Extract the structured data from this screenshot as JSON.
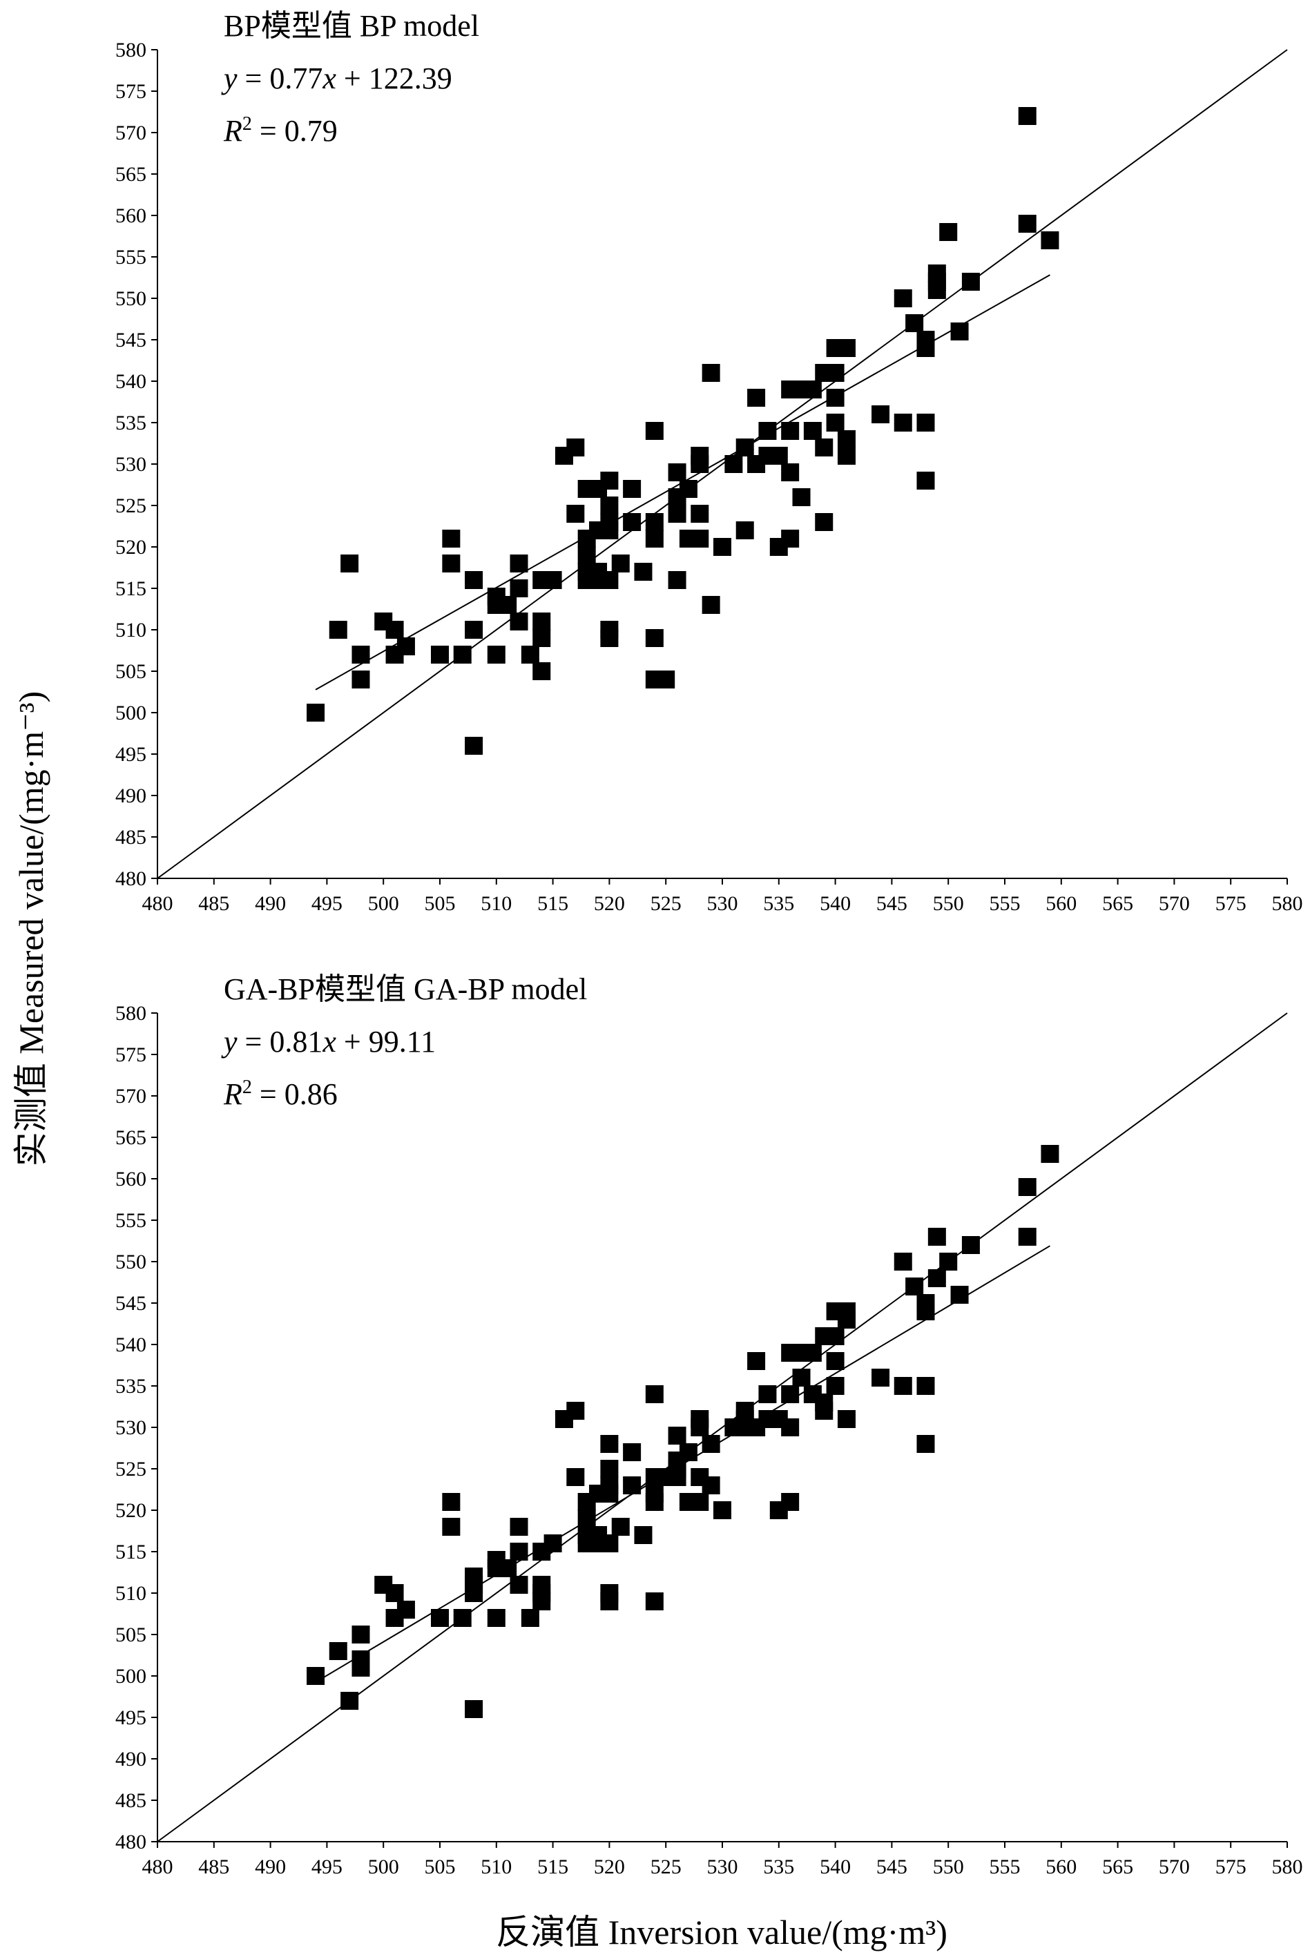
{
  "xlabel": "反演值  Inversion value/(mg·m³)",
  "ylabel": "实测值  Measured value/(mg·m⁻³)",
  "chart_data": [
    {
      "type": "scatter",
      "title": "BP模型值 BP model",
      "equation": {
        "lhs": "y",
        "eq": " = 0.77",
        "var": "x",
        "rest": " + 122.39"
      },
      "r2": {
        "r": "R",
        "sup": "2",
        "val": " = 0.79"
      },
      "xlim": [
        480,
        580
      ],
      "ylim": [
        480,
        580
      ],
      "tick_step": 5,
      "fit": {
        "slope": 0.77,
        "intercept": 122.39,
        "x_range": [
          494,
          559
        ]
      },
      "identity_line": true,
      "points": [
        [
          494,
          500
        ],
        [
          496,
          510
        ],
        [
          497,
          518
        ],
        [
          498,
          507
        ],
        [
          498,
          504
        ],
        [
          500,
          511
        ],
        [
          501,
          510
        ],
        [
          501,
          507
        ],
        [
          502,
          508
        ],
        [
          505,
          507
        ],
        [
          506,
          521
        ],
        [
          506,
          518
        ],
        [
          507,
          507
        ],
        [
          508,
          516
        ],
        [
          508,
          510
        ],
        [
          508,
          496
        ],
        [
          510,
          514
        ],
        [
          510,
          513
        ],
        [
          510,
          507
        ],
        [
          511,
          513
        ],
        [
          512,
          518
        ],
        [
          512,
          515
        ],
        [
          512,
          511
        ],
        [
          513,
          507
        ],
        [
          514,
          516
        ],
        [
          514,
          511
        ],
        [
          514,
          509
        ],
        [
          514,
          505
        ],
        [
          515,
          516
        ],
        [
          516,
          531
        ],
        [
          517,
          532
        ],
        [
          517,
          524
        ],
        [
          518,
          527
        ],
        [
          518,
          521
        ],
        [
          518,
          519
        ],
        [
          518,
          517
        ],
        [
          518,
          516
        ],
        [
          519,
          527
        ],
        [
          519,
          522
        ],
        [
          519,
          517
        ],
        [
          519,
          516
        ],
        [
          520,
          528
        ],
        [
          520,
          525
        ],
        [
          520,
          523
        ],
        [
          520,
          522
        ],
        [
          520,
          516
        ],
        [
          520,
          510
        ],
        [
          520,
          509
        ],
        [
          521,
          518
        ],
        [
          522,
          527
        ],
        [
          522,
          523
        ],
        [
          523,
          517
        ],
        [
          524,
          534
        ],
        [
          524,
          523
        ],
        [
          524,
          521
        ],
        [
          524,
          509
        ],
        [
          524,
          504
        ],
        [
          525,
          504
        ],
        [
          526,
          529
        ],
        [
          526,
          526
        ],
        [
          526,
          524
        ],
        [
          526,
          516
        ],
        [
          527,
          527
        ],
        [
          527,
          521
        ],
        [
          528,
          531
        ],
        [
          528,
          530
        ],
        [
          528,
          524
        ],
        [
          528,
          521
        ],
        [
          529,
          541
        ],
        [
          529,
          513
        ],
        [
          530,
          520
        ],
        [
          531,
          530
        ],
        [
          532,
          532
        ],
        [
          532,
          522
        ],
        [
          533,
          538
        ],
        [
          533,
          530
        ],
        [
          534,
          534
        ],
        [
          534,
          531
        ],
        [
          535,
          531
        ],
        [
          535,
          520
        ],
        [
          536,
          539
        ],
        [
          536,
          534
        ],
        [
          536,
          529
        ],
        [
          536,
          521
        ],
        [
          537,
          539
        ],
        [
          537,
          526
        ],
        [
          538,
          539
        ],
        [
          538,
          534
        ],
        [
          539,
          541
        ],
        [
          539,
          532
        ],
        [
          539,
          523
        ],
        [
          540,
          544
        ],
        [
          540,
          541
        ],
        [
          540,
          538
        ],
        [
          540,
          535
        ],
        [
          541,
          544
        ],
        [
          541,
          533
        ],
        [
          541,
          531
        ],
        [
          544,
          536
        ],
        [
          546,
          550
        ],
        [
          546,
          535
        ],
        [
          547,
          547
        ],
        [
          548,
          545
        ],
        [
          548,
          544
        ],
        [
          548,
          535
        ],
        [
          548,
          528
        ],
        [
          549,
          553
        ],
        [
          549,
          552
        ],
        [
          549,
          551
        ],
        [
          550,
          558
        ],
        [
          551,
          546
        ],
        [
          552,
          552
        ],
        [
          557,
          572
        ],
        [
          557,
          559
        ],
        [
          559,
          557
        ]
      ]
    },
    {
      "type": "scatter",
      "title": "GA-BP模型值  GA-BP model",
      "equation": {
        "lhs": "y",
        "eq": " = 0.81",
        "var": "x",
        "rest": " + 99.11"
      },
      "r2": {
        "r": "R",
        "sup": "2",
        "val": " = 0.86"
      },
      "xlim": [
        480,
        580
      ],
      "ylim": [
        480,
        580
      ],
      "tick_step": 5,
      "fit": {
        "slope": 0.81,
        "intercept": 99.11,
        "x_range": [
          494,
          559
        ]
      },
      "identity_line": true,
      "points": [
        [
          494,
          500
        ],
        [
          496,
          503
        ],
        [
          497,
          497
        ],
        [
          498,
          505
        ],
        [
          498,
          502
        ],
        [
          498,
          501
        ],
        [
          500,
          511
        ],
        [
          501,
          510
        ],
        [
          501,
          507
        ],
        [
          502,
          508
        ],
        [
          505,
          507
        ],
        [
          506,
          521
        ],
        [
          506,
          518
        ],
        [
          507,
          507
        ],
        [
          508,
          512
        ],
        [
          508,
          511
        ],
        [
          508,
          510
        ],
        [
          508,
          496
        ],
        [
          510,
          514
        ],
        [
          510,
          513
        ],
        [
          510,
          507
        ],
        [
          511,
          513
        ],
        [
          512,
          518
        ],
        [
          512,
          515
        ],
        [
          512,
          511
        ],
        [
          513,
          507
        ],
        [
          514,
          515
        ],
        [
          514,
          511
        ],
        [
          514,
          510
        ],
        [
          514,
          509
        ],
        [
          515,
          516
        ],
        [
          516,
          531
        ],
        [
          517,
          532
        ],
        [
          517,
          524
        ],
        [
          518,
          521
        ],
        [
          518,
          519
        ],
        [
          518,
          517
        ],
        [
          518,
          516
        ],
        [
          519,
          522
        ],
        [
          519,
          517
        ],
        [
          519,
          516
        ],
        [
          520,
          528
        ],
        [
          520,
          525
        ],
        [
          520,
          523
        ],
        [
          520,
          522
        ],
        [
          520,
          516
        ],
        [
          520,
          510
        ],
        [
          520,
          509
        ],
        [
          521,
          518
        ],
        [
          522,
          527
        ],
        [
          522,
          523
        ],
        [
          523,
          517
        ],
        [
          524,
          534
        ],
        [
          524,
          524
        ],
        [
          524,
          522
        ],
        [
          524,
          521
        ],
        [
          524,
          509
        ],
        [
          525,
          524
        ],
        [
          526,
          529
        ],
        [
          526,
          526
        ],
        [
          526,
          525
        ],
        [
          526,
          524
        ],
        [
          527,
          527
        ],
        [
          527,
          521
        ],
        [
          528,
          531
        ],
        [
          528,
          530
        ],
        [
          528,
          524
        ],
        [
          528,
          521
        ],
        [
          529,
          528
        ],
        [
          529,
          523
        ],
        [
          530,
          520
        ],
        [
          531,
          530
        ],
        [
          532,
          532
        ],
        [
          532,
          531
        ],
        [
          532,
          530
        ],
        [
          533,
          538
        ],
        [
          533,
          530
        ],
        [
          534,
          534
        ],
        [
          534,
          531
        ],
        [
          535,
          531
        ],
        [
          535,
          520
        ],
        [
          536,
          539
        ],
        [
          536,
          534
        ],
        [
          536,
          530
        ],
        [
          536,
          521
        ],
        [
          537,
          539
        ],
        [
          537,
          536
        ],
        [
          538,
          539
        ],
        [
          538,
          534
        ],
        [
          539,
          541
        ],
        [
          539,
          533
        ],
        [
          539,
          532
        ],
        [
          540,
          544
        ],
        [
          540,
          541
        ],
        [
          540,
          538
        ],
        [
          540,
          535
        ],
        [
          541,
          544
        ],
        [
          541,
          543
        ],
        [
          541,
          531
        ],
        [
          544,
          536
        ],
        [
          546,
          550
        ],
        [
          546,
          535
        ],
        [
          547,
          547
        ],
        [
          548,
          545
        ],
        [
          548,
          544
        ],
        [
          548,
          535
        ],
        [
          548,
          528
        ],
        [
          549,
          553
        ],
        [
          549,
          548
        ],
        [
          550,
          550
        ],
        [
          551,
          546
        ],
        [
          552,
          552
        ],
        [
          557,
          559
        ],
        [
          557,
          553
        ],
        [
          559,
          563
        ]
      ]
    }
  ]
}
